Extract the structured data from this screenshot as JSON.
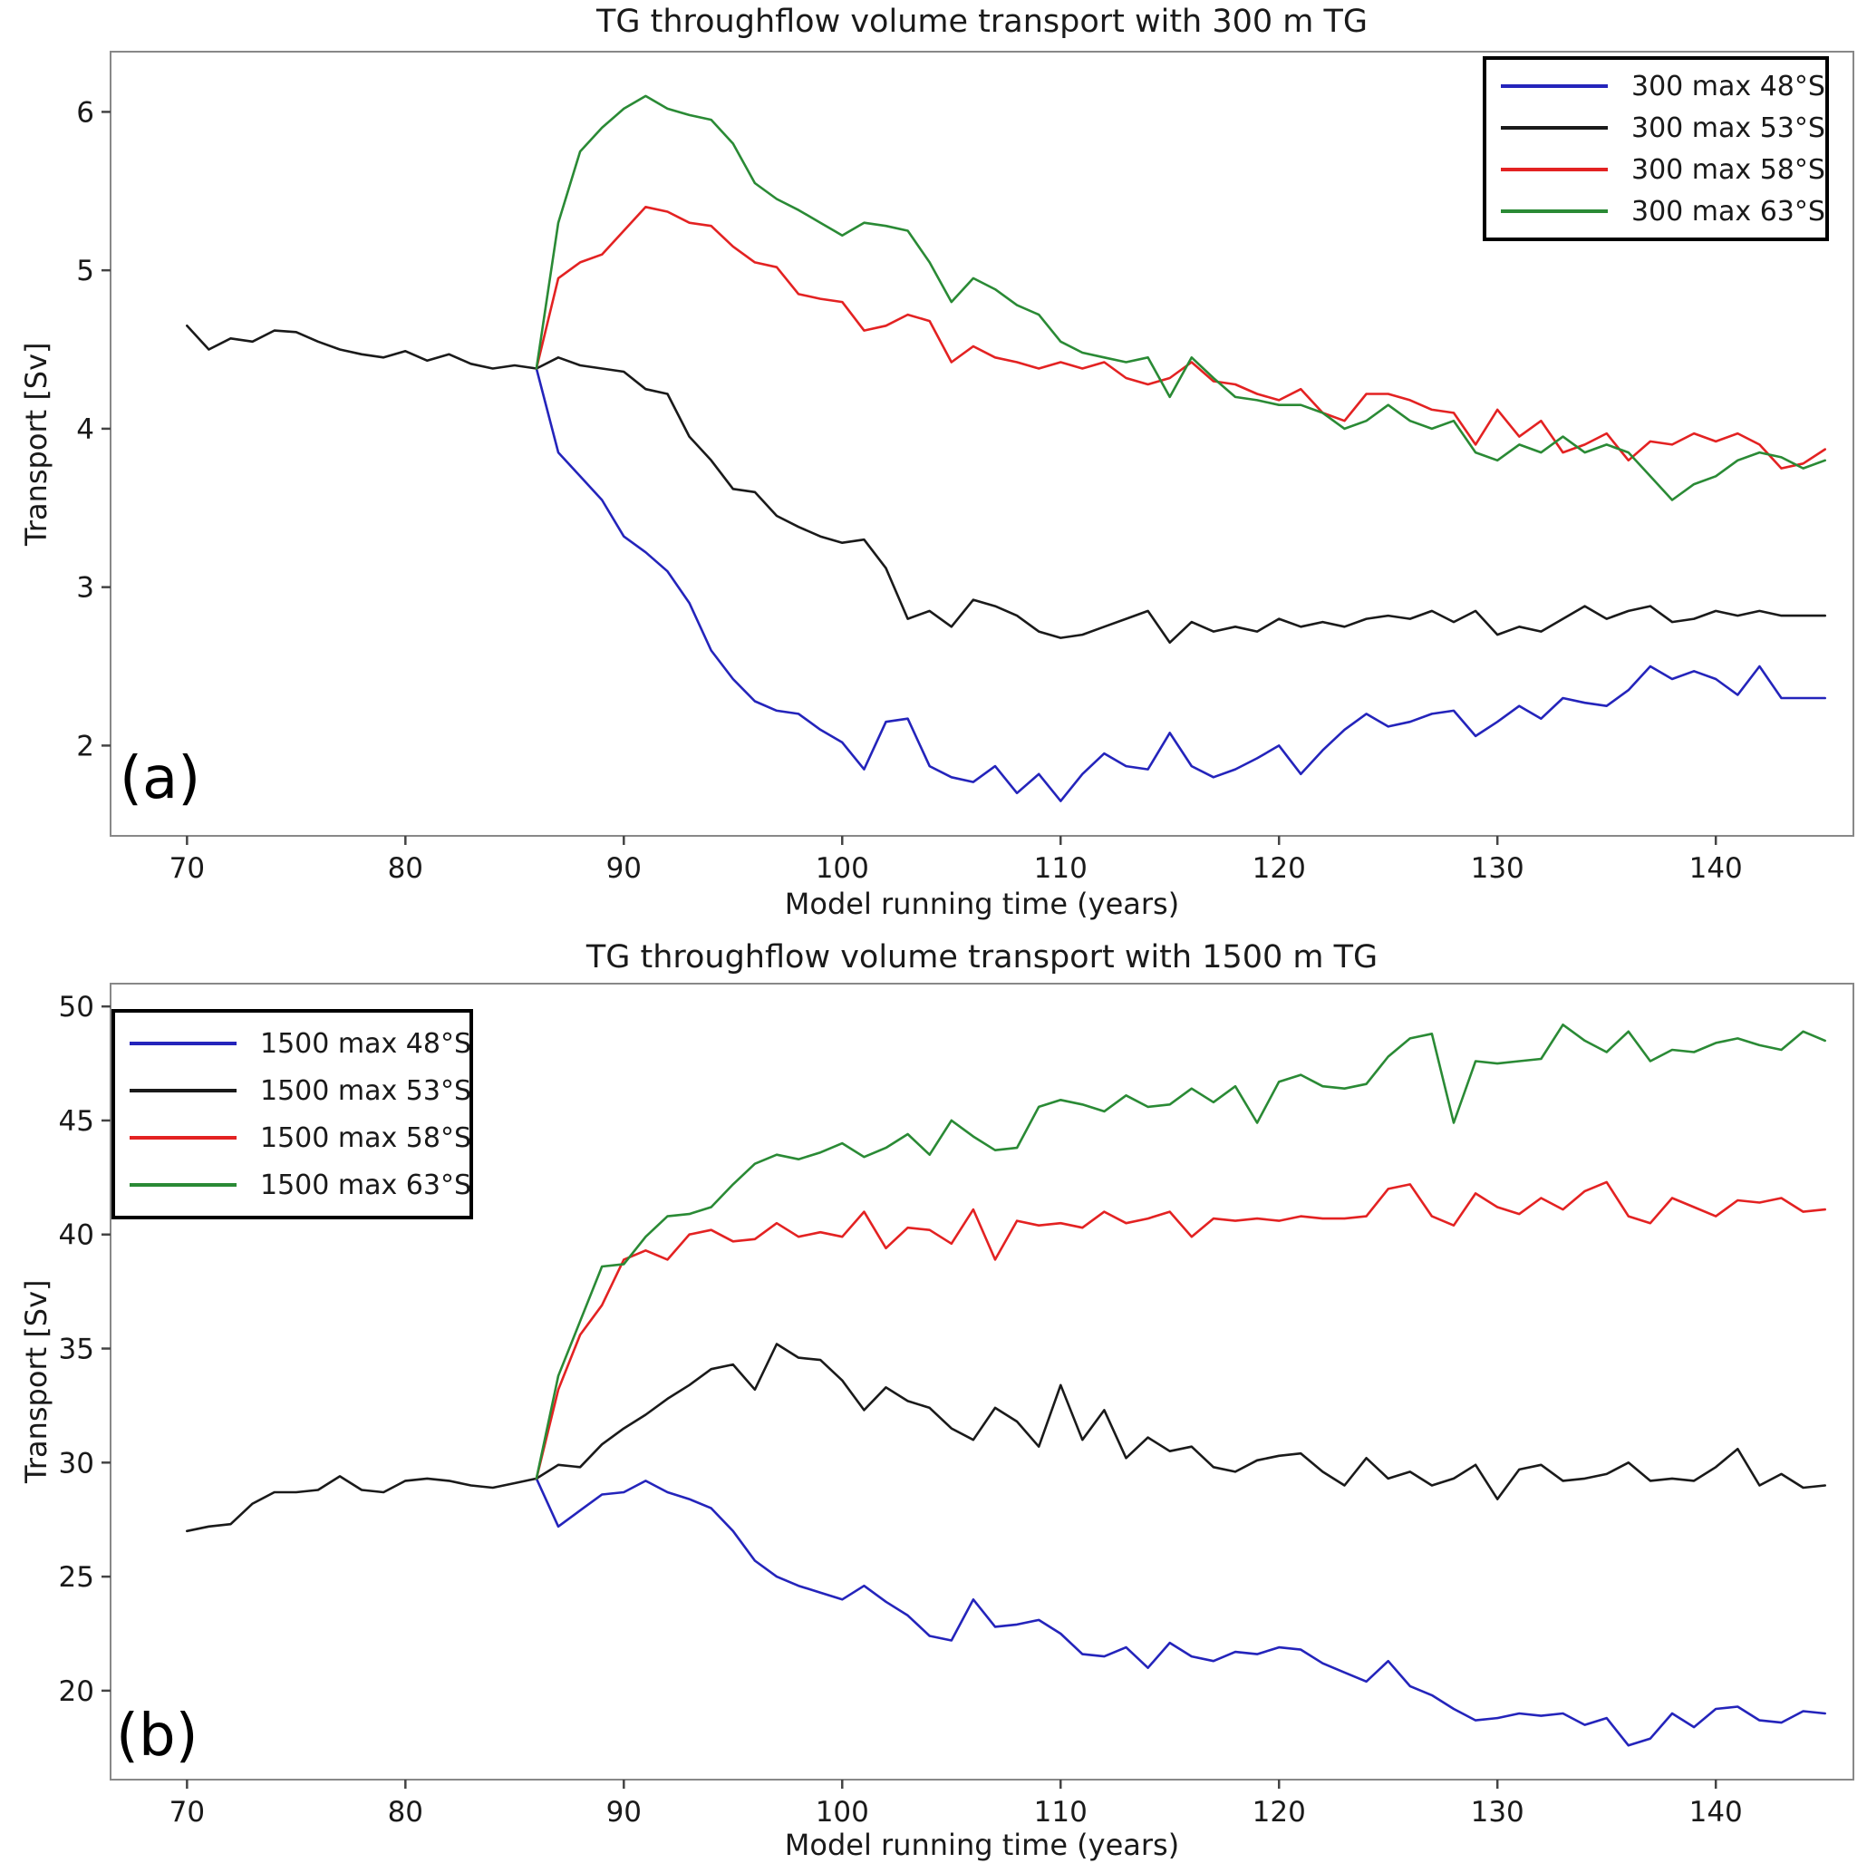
{
  "page": {
    "background": "#ffffff"
  },
  "chart_data": [
    {
      "type": "line",
      "panel_label": "(a)",
      "title": "TG throughflow volume transport with 300 m TG",
      "xlabel": "Model running time (years)",
      "ylabel": "Transport [Sv]",
      "xlim": [
        66.5,
        146.3
      ],
      "ylim": [
        1.43,
        6.38
      ],
      "xticks": [
        70,
        80,
        90,
        100,
        110,
        120,
        130,
        140
      ],
      "yticks": [
        2,
        3,
        4,
        5,
        6
      ],
      "grid": false,
      "legend_position": "top-right",
      "series": [
        {
          "name": "300 max 48°S",
          "color": "#2424bb",
          "start_year": 86,
          "values": [
            4.38,
            3.85,
            3.7,
            3.55,
            3.32,
            3.22,
            3.1,
            2.9,
            2.6,
            2.42,
            2.28,
            2.22,
            2.2,
            2.1,
            2.02,
            1.85,
            2.15,
            2.17,
            1.87,
            1.8,
            1.77,
            1.87,
            1.7,
            1.82,
            1.65,
            1.82,
            1.95,
            1.87,
            1.85,
            2.08,
            1.87,
            1.8,
            1.85,
            1.92,
            2.0,
            1.82,
            1.97,
            2.1,
            2.2,
            2.12,
            2.15,
            2.2,
            2.22,
            2.06,
            2.15,
            2.25,
            2.17,
            2.3,
            2.27,
            2.25,
            2.35,
            2.5,
            2.42,
            2.47,
            2.42,
            2.32,
            2.5,
            2.3,
            2.3,
            2.3
          ]
        },
        {
          "name": "300 max 53°S",
          "color": "#1a1a1a",
          "start_year": 70,
          "values": [
            4.65,
            4.5,
            4.57,
            4.55,
            4.62,
            4.61,
            4.55,
            4.5,
            4.47,
            4.45,
            4.49,
            4.43,
            4.47,
            4.41,
            4.38,
            4.4,
            4.38,
            4.45,
            4.4,
            4.38,
            4.36,
            4.25,
            4.22,
            3.95,
            3.8,
            3.62,
            3.6,
            3.45,
            3.38,
            3.32,
            3.28,
            3.3,
            3.12,
            2.8,
            2.85,
            2.75,
            2.92,
            2.88,
            2.82,
            2.72,
            2.68,
            2.7,
            2.75,
            2.8,
            2.85,
            2.65,
            2.78,
            2.72,
            2.75,
            2.72,
            2.8,
            2.75,
            2.78,
            2.75,
            2.8,
            2.82,
            2.8,
            2.85,
            2.78,
            2.85,
            2.7,
            2.75,
            2.72,
            2.8,
            2.88,
            2.8,
            2.85,
            2.88,
            2.78,
            2.8,
            2.85,
            2.82,
            2.85,
            2.82,
            2.82,
            2.82
          ]
        },
        {
          "name": "300 max 58°S",
          "color": "#e32222",
          "start_year": 86,
          "values": [
            4.38,
            4.95,
            5.05,
            5.1,
            5.25,
            5.4,
            5.37,
            5.3,
            5.28,
            5.15,
            5.05,
            5.02,
            4.85,
            4.82,
            4.8,
            4.62,
            4.65,
            4.72,
            4.68,
            4.42,
            4.52,
            4.45,
            4.42,
            4.38,
            4.42,
            4.38,
            4.42,
            4.32,
            4.28,
            4.32,
            4.42,
            4.3,
            4.28,
            4.22,
            4.18,
            4.25,
            4.1,
            4.05,
            4.22,
            4.22,
            4.18,
            4.12,
            4.1,
            3.9,
            4.12,
            3.95,
            4.05,
            3.85,
            3.9,
            3.97,
            3.8,
            3.92,
            3.9,
            3.97,
            3.92,
            3.97,
            3.9,
            3.75,
            3.78,
            3.87
          ]
        },
        {
          "name": "300 max 63°S",
          "color": "#2a8a35",
          "start_year": 86,
          "values": [
            4.38,
            5.3,
            5.75,
            5.9,
            6.02,
            6.1,
            6.02,
            5.98,
            5.95,
            5.8,
            5.55,
            5.45,
            5.38,
            5.3,
            5.22,
            5.3,
            5.28,
            5.25,
            5.05,
            4.8,
            4.95,
            4.88,
            4.78,
            4.72,
            4.55,
            4.48,
            4.45,
            4.42,
            4.45,
            4.2,
            4.45,
            4.32,
            4.2,
            4.18,
            4.15,
            4.15,
            4.1,
            4.0,
            4.05,
            4.15,
            4.05,
            4.0,
            4.05,
            3.85,
            3.8,
            3.9,
            3.85,
            3.95,
            3.85,
            3.9,
            3.85,
            3.7,
            3.55,
            3.65,
            3.7,
            3.8,
            3.85,
            3.82,
            3.75,
            3.8
          ]
        }
      ]
    },
    {
      "type": "line",
      "panel_label": "(b)",
      "title": "TG throughflow volume transport with 1500 m TG",
      "xlabel": "Model running time (years)",
      "ylabel": "Transport [Sv]",
      "xlim": [
        66.5,
        146.3
      ],
      "ylim": [
        16.1,
        51.0
      ],
      "xticks": [
        70,
        80,
        90,
        100,
        110,
        120,
        130,
        140
      ],
      "yticks": [
        20,
        25,
        30,
        35,
        40,
        45,
        50
      ],
      "grid": false,
      "legend_position": "top-left",
      "series": [
        {
          "name": "1500 max 48°S",
          "color": "#2424bb",
          "start_year": 86,
          "values": [
            29.3,
            27.2,
            27.9,
            28.6,
            28.7,
            29.2,
            28.7,
            28.4,
            28.0,
            27.0,
            25.7,
            25.0,
            24.6,
            24.3,
            24.0,
            24.6,
            23.9,
            23.3,
            22.4,
            22.2,
            24.0,
            22.8,
            22.9,
            23.1,
            22.5,
            21.6,
            21.5,
            21.9,
            21.0,
            22.1,
            21.5,
            21.3,
            21.7,
            21.6,
            21.9,
            21.8,
            21.2,
            20.8,
            20.4,
            21.3,
            20.2,
            19.8,
            19.2,
            18.7,
            18.8,
            19.0,
            18.9,
            19.0,
            18.5,
            18.8,
            17.6,
            17.9,
            19.0,
            18.4,
            19.2,
            19.3,
            18.7,
            18.6,
            19.1,
            19.0
          ]
        },
        {
          "name": "1500 max 53°S",
          "color": "#1a1a1a",
          "start_year": 70,
          "values": [
            27.0,
            27.2,
            27.3,
            28.2,
            28.7,
            28.7,
            28.8,
            29.4,
            28.8,
            28.7,
            29.2,
            29.3,
            29.2,
            29.0,
            28.9,
            29.1,
            29.3,
            29.9,
            29.8,
            30.8,
            31.5,
            32.1,
            32.8,
            33.4,
            34.1,
            34.3,
            33.2,
            35.2,
            34.6,
            34.5,
            33.6,
            32.3,
            33.3,
            32.7,
            32.4,
            31.5,
            31.0,
            32.4,
            31.8,
            30.7,
            33.4,
            31.0,
            32.3,
            30.2,
            31.1,
            30.5,
            30.7,
            29.8,
            29.6,
            30.1,
            30.3,
            30.4,
            29.6,
            29.0,
            30.2,
            29.3,
            29.6,
            29.0,
            29.3,
            29.9,
            28.4,
            29.7,
            29.9,
            29.2,
            29.3,
            29.5,
            30.0,
            29.2,
            29.3,
            29.2,
            29.8,
            30.6,
            29.0,
            29.5,
            28.9,
            29.0
          ]
        },
        {
          "name": "1500 max 58°S",
          "color": "#e32222",
          "start_year": 86,
          "values": [
            29.3,
            33.2,
            35.6,
            36.9,
            38.9,
            39.3,
            38.9,
            40.0,
            40.2,
            39.7,
            39.8,
            40.5,
            39.9,
            40.1,
            39.9,
            41.0,
            39.4,
            40.3,
            40.2,
            39.6,
            41.1,
            38.9,
            40.6,
            40.4,
            40.5,
            40.3,
            41.0,
            40.5,
            40.7,
            41.0,
            39.9,
            40.7,
            40.6,
            40.7,
            40.6,
            40.8,
            40.7,
            40.7,
            40.8,
            42.0,
            42.2,
            40.8,
            40.4,
            41.8,
            41.2,
            40.9,
            41.6,
            41.1,
            41.9,
            42.3,
            40.8,
            40.5,
            41.6,
            41.2,
            40.8,
            41.5,
            41.4,
            41.6,
            41.0,
            41.1
          ]
        },
        {
          "name": "1500 max 63°S",
          "color": "#2a8a35",
          "start_year": 86,
          "values": [
            29.3,
            33.8,
            36.2,
            38.6,
            38.7,
            39.9,
            40.8,
            40.9,
            41.2,
            42.2,
            43.1,
            43.5,
            43.3,
            43.6,
            44.0,
            43.4,
            43.8,
            44.4,
            43.5,
            45.0,
            44.3,
            43.7,
            43.8,
            45.6,
            45.9,
            45.7,
            45.4,
            46.1,
            45.6,
            45.7,
            46.4,
            45.8,
            46.5,
            44.9,
            46.7,
            47.0,
            46.5,
            46.4,
            46.6,
            47.8,
            48.6,
            48.8,
            44.9,
            47.6,
            47.5,
            47.6,
            47.7,
            49.2,
            48.5,
            48.0,
            48.9,
            47.6,
            48.1,
            48.0,
            48.4,
            48.6,
            48.3,
            48.1,
            48.9,
            48.5
          ]
        }
      ]
    }
  ]
}
